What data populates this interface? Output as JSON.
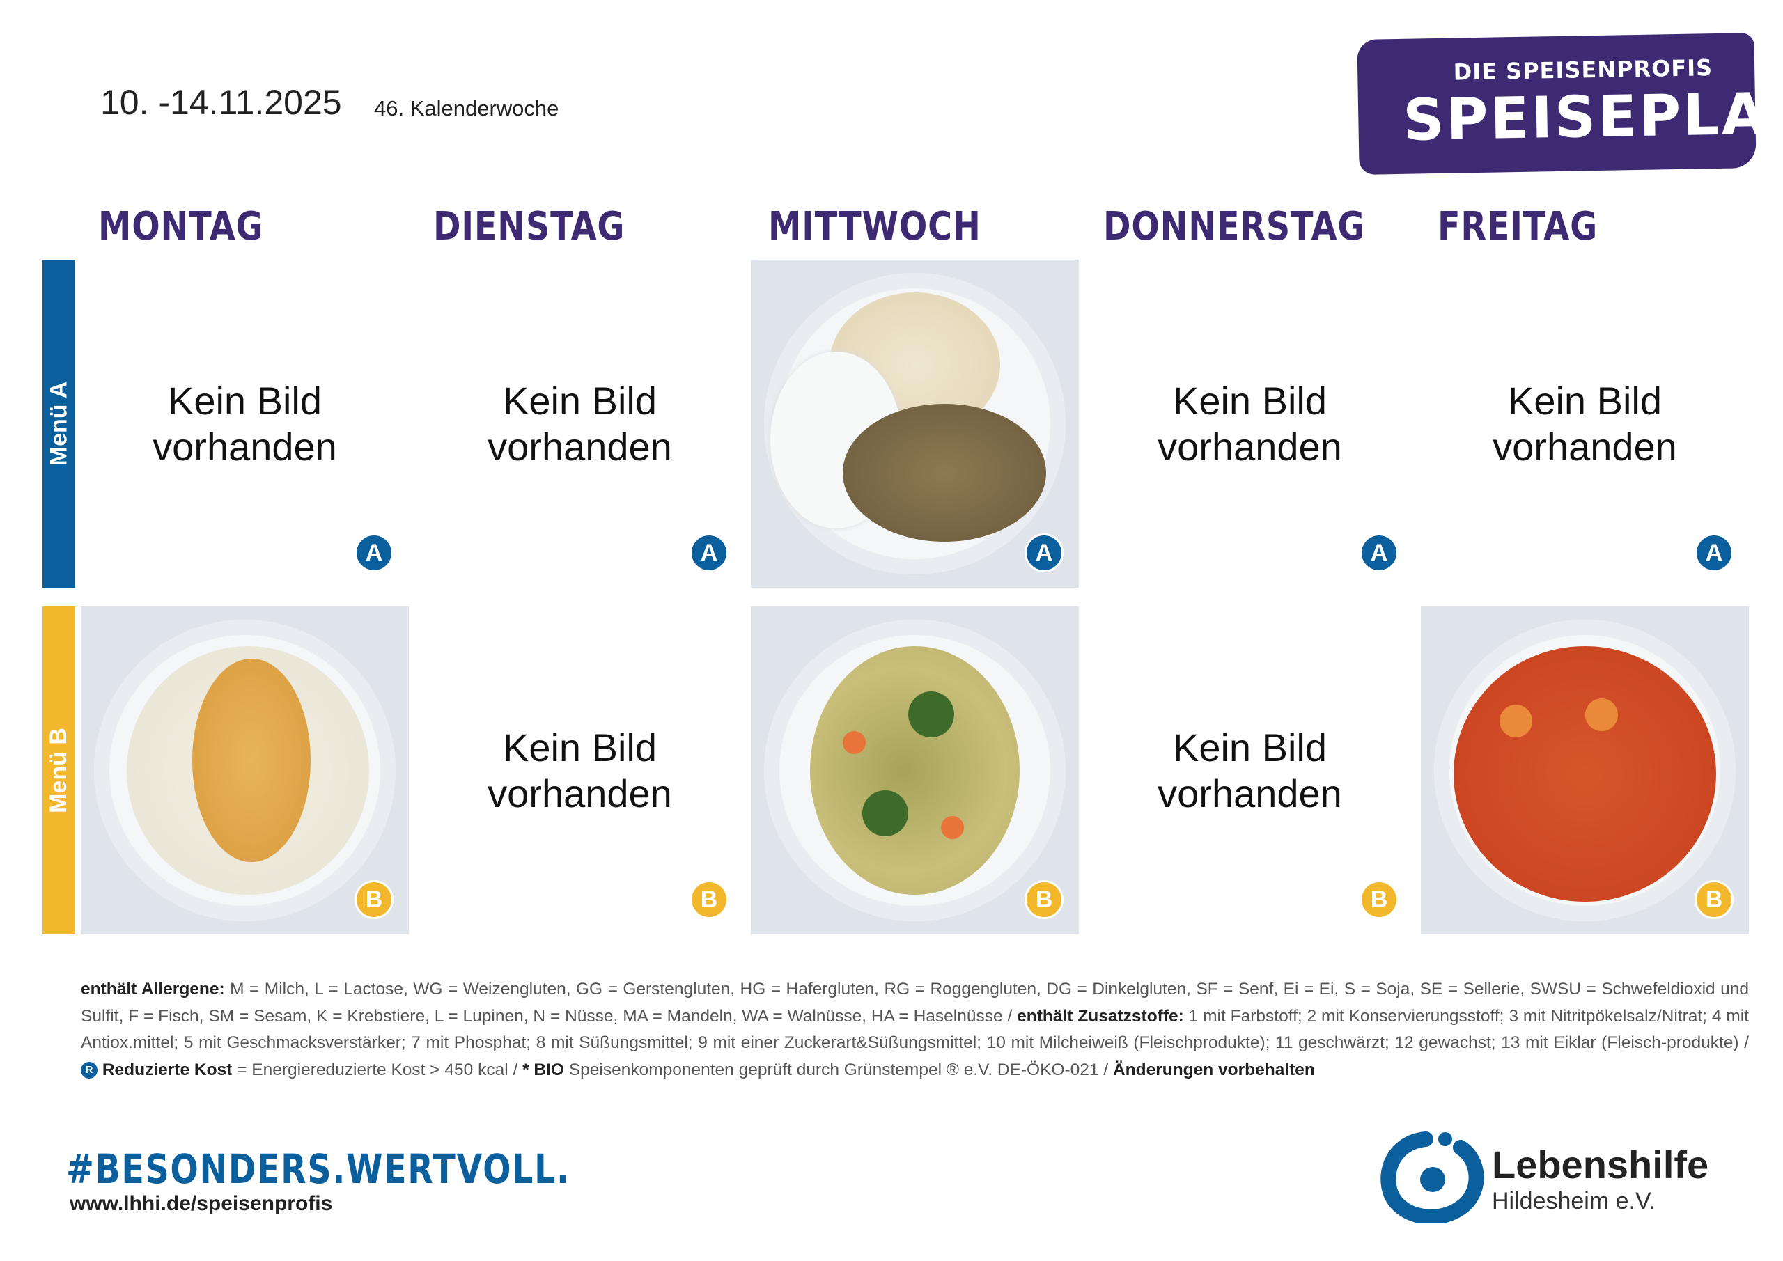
{
  "header": {
    "date_range": "10. -14.11.2025",
    "week": "46. Kalenderwoche",
    "logo_top": "DIE SPEISENPROFIS",
    "logo_main": "SPEISEPLAN"
  },
  "days": [
    "MONTAG",
    "DIENSTAG",
    "MITTWOCH",
    "DONNERSTAG",
    "FREITAG"
  ],
  "menus": [
    {
      "label": "Menü A",
      "badge": "A",
      "color": "#0a5f9c",
      "cells": [
        {
          "text_1": "Kein Bild",
          "text_2": "vorhanden"
        },
        {
          "text_1": "Kein Bild",
          "text_2": "vorhanden"
        },
        {
          "image": "rice-chicken-dip"
        },
        {
          "text_1": "Kein Bild",
          "text_2": "vorhanden"
        },
        {
          "text_1": "Kein Bild",
          "text_2": "vorhanden"
        }
      ]
    },
    {
      "label": "Menü B",
      "badge": "B",
      "color": "#f2b72a",
      "cells": [
        {
          "image": "rice-pudding-apple"
        },
        {
          "text_1": "Kein Bild",
          "text_2": "vorhanden"
        },
        {
          "image": "barley-vegetables"
        },
        {
          "text_1": "Kein Bild",
          "text_2": "vorhanden"
        },
        {
          "image": "tomato-rice-soup"
        }
      ]
    }
  ],
  "legend": {
    "allergen_label": "enthält Allergene:",
    "allergens": " M = Milch, L = Lactose, WG = Weizengluten, GG = Gerstengluten, HG = Hafergluten, RG = Roggengluten, DG = Dinkelgluten, SF = Senf, Ei = Ei, S = Soja, SE = Sellerie, SWSU = Schwefeldioxid und Sulfit, F = Fisch, SM = Sesam, K = Krebstiere, L = Lupinen, N = Nüsse, MA = Mandeln, WA = Walnüsse, HA =  Haselnüsse / ",
    "additive_label": "enthält Zusatzstoffe:",
    "additives": " 1 mit Farbstoff; 2 mit Konservierungsstoff; 3 mit Nitritpökelsalz/Nitrat; 4 mit Antiox.mittel; 5 mit Geschmacksverstärker; 7 mit Phosphat; 8 mit Süßungsmittel; 9 mit einer Zuckerart&Süßungsmittel; 10 mit Milcheiweiß (Fleischprodukte); 11 geschwärzt; 12 gewachst; 13 mit Eiklar (Fleisch-produkte) / ",
    "r_icon": "R",
    "reduced_label": "Reduzierte Kost",
    "reduced_text": " = Energiereduzierte Kost > 450 kcal / ",
    "bio_label": "* BIO",
    "bio_text": " Speisenkomponenten geprüft durch Grünstempel ® e.V. DE-ÖKO-021 / ",
    "changes": "Änderungen vorbehalten"
  },
  "footer": {
    "hashtag": "#BESONDERS.WERTVOLL.",
    "url": "www.lhhi.de/speisenprofis",
    "org_name": "Lebenshilfe",
    "org_sub": "Hildesheim e.V."
  }
}
